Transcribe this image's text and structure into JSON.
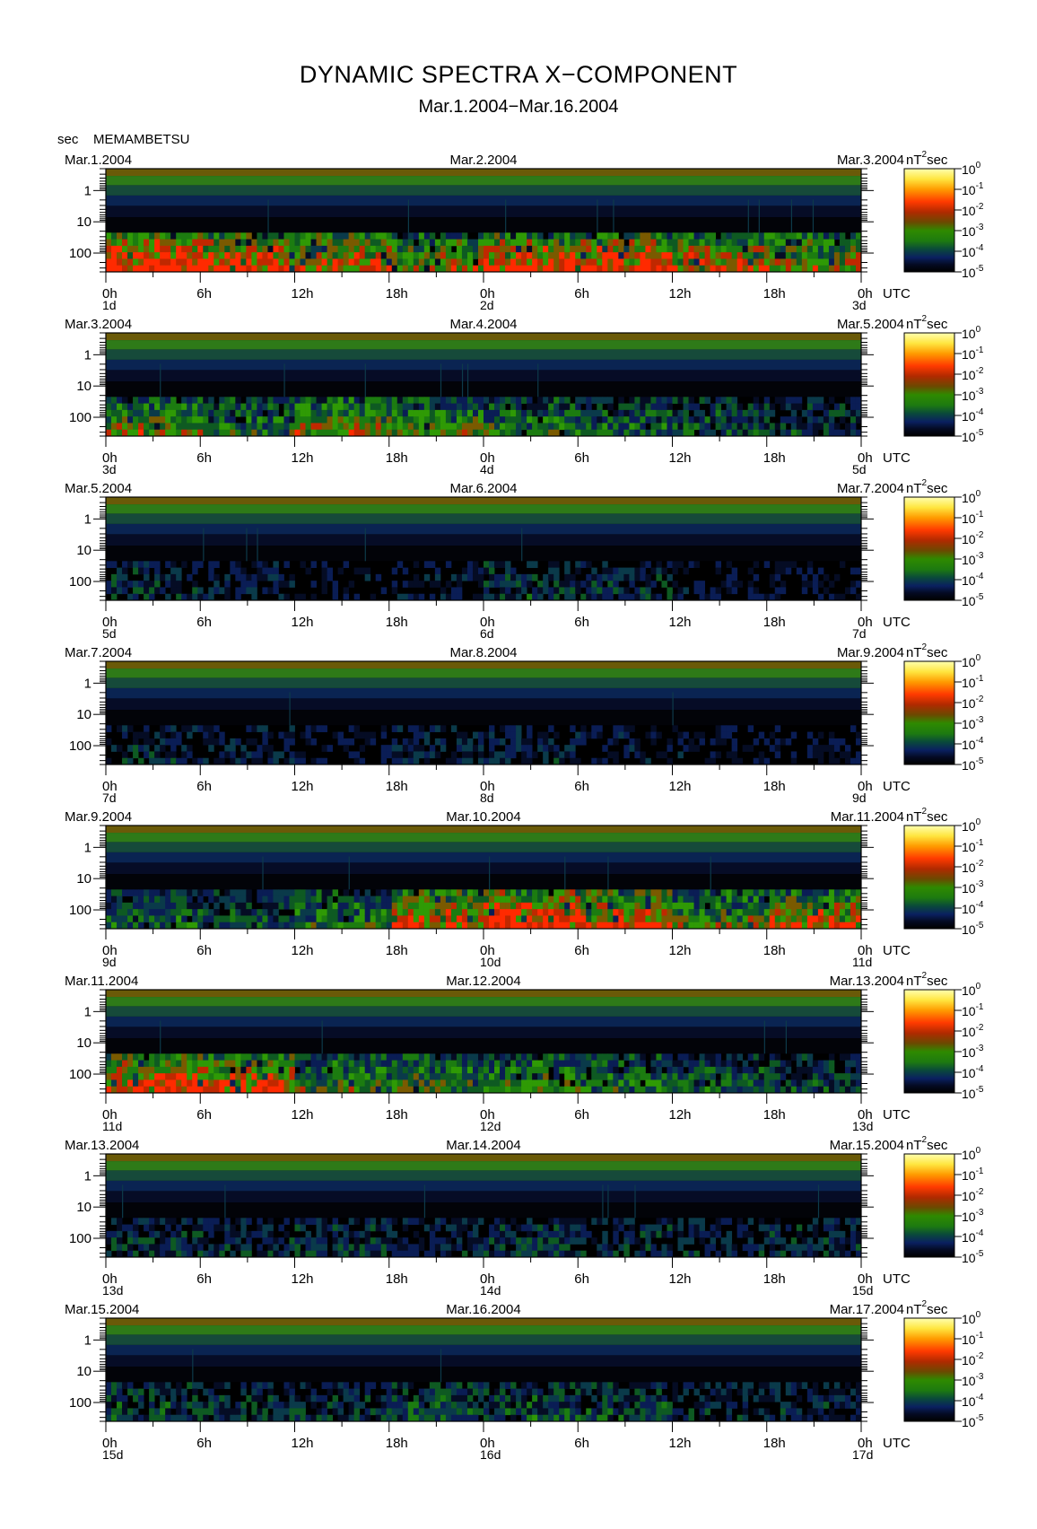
{
  "title": "DYNAMIC SPECTRA X−COMPONENT",
  "subtitle": "Mar.1.2004−Mar.16.2004",
  "unit_label": "sec",
  "station": "MEMAMBETSU",
  "colorbar": {
    "unit": "nT",
    "unit_sup": "2",
    "unit_suffix": "sec",
    "base": "10",
    "exponents": [
      "0",
      "-1",
      "-2",
      "-3",
      "-4",
      "-5"
    ],
    "colors": [
      "#ffffb0",
      "#ffe640",
      "#ff9b00",
      "#ff3a00",
      "#d81e00",
      "#a62a00",
      "#6a4a00",
      "#2f8a00",
      "#1d7a10",
      "#0a5a2a",
      "#0a3a4a",
      "#0a2060",
      "#040a22",
      "#000000"
    ]
  },
  "chart_data": {
    "type": "heatmap",
    "y_axis": {
      "label": "sec",
      "scale": "log",
      "range": [
        400,
        0.2
      ],
      "tick_labels": [
        "1",
        "10",
        "100"
      ],
      "tick_values": [
        1,
        10,
        100
      ]
    },
    "x_axis": {
      "unit": "UTC",
      "tick_labels": [
        "0h",
        "6h",
        "12h",
        "18h",
        "0h",
        "6h",
        "12h",
        "18h",
        "0h"
      ]
    },
    "color_scale": {
      "unit": "nT²sec",
      "scale": "log",
      "min": "1e-5",
      "max": "1e0"
    },
    "panels": [
      {
        "left_date": "Mar.1.2004",
        "mid_date": "Mar.2.2004",
        "right_date": "Mar.3.2004",
        "days": [
          "1d",
          "2d",
          "3d"
        ],
        "activity": 0.85,
        "profile": [
          1.0,
          0.9,
          0.8,
          0.7,
          0.9,
          0.95,
          0.8,
          0.7
        ]
      },
      {
        "left_date": "Mar.3.2004",
        "mid_date": "Mar.4.2004",
        "right_date": "Mar.5.2004",
        "days": [
          "3d",
          "4d",
          "5d"
        ],
        "activity": 0.7,
        "profile": [
          0.8,
          0.6,
          0.8,
          0.7,
          0.6,
          0.5,
          0.4,
          0.3
        ]
      },
      {
        "left_date": "Mar.5.2004",
        "mid_date": "Mar.6.2004",
        "right_date": "Mar.7.2004",
        "days": [
          "5d",
          "6d",
          "7d"
        ],
        "activity": 0.35,
        "profile": [
          0.6,
          0.3,
          0.1,
          0.2,
          0.6,
          0.5,
          0.15,
          0.05
        ]
      },
      {
        "left_date": "Mar.7.2004",
        "mid_date": "Mar.8.2004",
        "right_date": "Mar.9.2004",
        "days": [
          "7d",
          "8d",
          "9d"
        ],
        "activity": 0.3,
        "profile": [
          0.5,
          0.3,
          0.1,
          0.4,
          0.5,
          0.2,
          0.1,
          0.1
        ]
      },
      {
        "left_date": "Mar.9.2004",
        "mid_date": "Mar.10.2004",
        "right_date": "Mar.11.2004",
        "days": [
          "9d",
          "10d",
          "11d"
        ],
        "activity": 0.85,
        "profile": [
          0.4,
          0.3,
          0.5,
          0.8,
          1.0,
          0.9,
          0.6,
          0.8
        ]
      },
      {
        "left_date": "Mar.11.2004",
        "mid_date": "Mar.12.2004",
        "right_date": "Mar.13.2004",
        "days": [
          "11d",
          "12d",
          "13d"
        ],
        "activity": 0.8,
        "profile": [
          1.0,
          0.9,
          0.6,
          0.6,
          0.6,
          0.5,
          0.4,
          0.3
        ]
      },
      {
        "left_date": "Mar.13.2004",
        "mid_date": "Mar.14.2004",
        "right_date": "Mar.15.2004",
        "days": [
          "13d",
          "14d",
          "15d"
        ],
        "activity": 0.45,
        "profile": [
          0.5,
          0.4,
          0.5,
          0.3,
          0.5,
          0.4,
          0.3,
          0.4
        ]
      },
      {
        "left_date": "Mar.15.2004",
        "mid_date": "Mar.16.2004",
        "right_date": "Mar.17.2004",
        "days": [
          "15d",
          "16d",
          "17d"
        ],
        "activity": 0.5,
        "profile": [
          0.5,
          0.4,
          0.4,
          0.6,
          0.6,
          0.5,
          0.3,
          0.3
        ]
      }
    ]
  }
}
